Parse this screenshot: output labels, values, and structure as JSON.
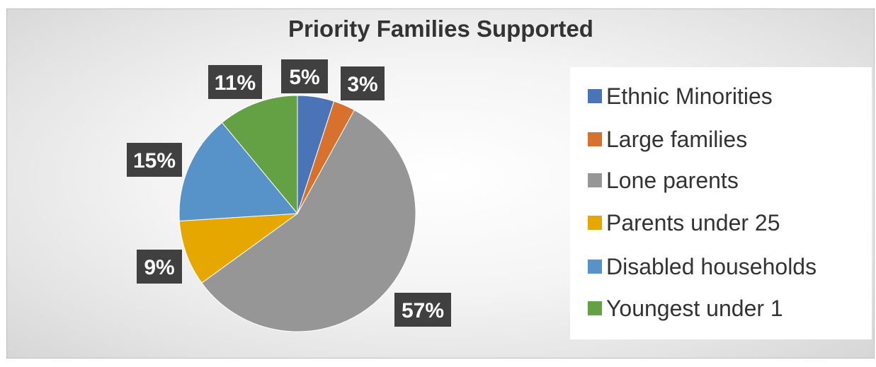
{
  "chart_data": {
    "type": "pie",
    "title": "Priority Families Supported",
    "categories": [
      "Ethnic Minorities",
      "Large families",
      "Lone parents",
      "Parents under 25",
      "Disabled households",
      "Youngest under 1"
    ],
    "values": [
      5,
      3,
      57,
      9,
      15,
      11
    ],
    "data_labels": [
      "5%",
      "3%",
      "57%",
      "9%",
      "15%",
      "11%"
    ],
    "colors": [
      "#4472c4",
      "#ed7d31",
      "#a5a5a5",
      "#ffc000",
      "#5b9bd5",
      "#70ad47"
    ],
    "legend_position": "right"
  }
}
